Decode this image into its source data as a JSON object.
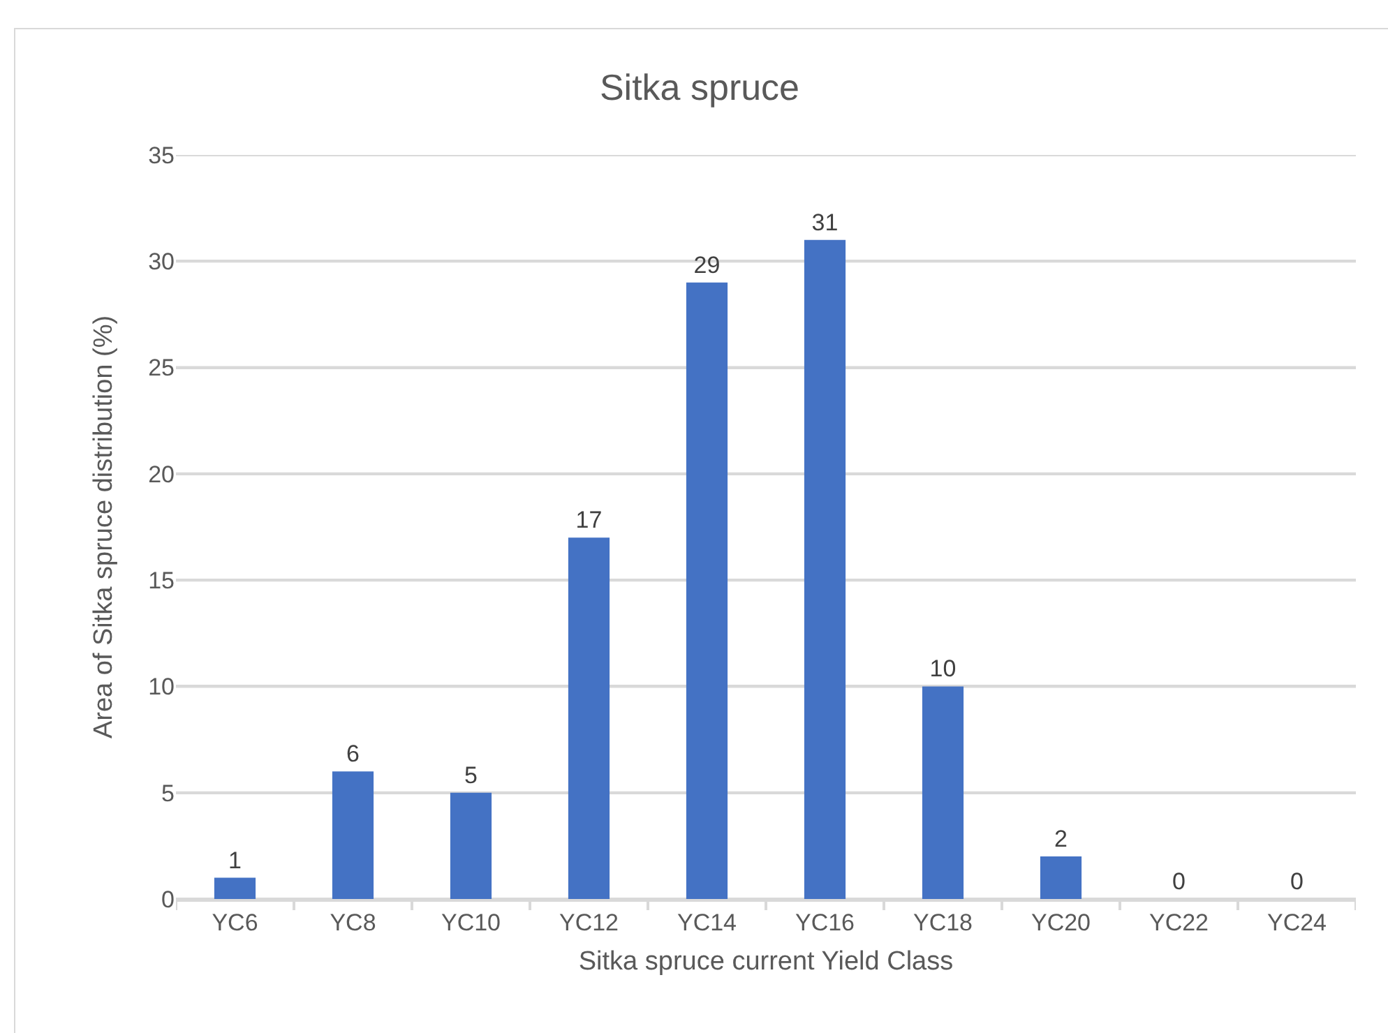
{
  "chart_data": {
    "type": "bar",
    "title": "Sitka spruce",
    "xlabel": "Sitka spruce current Yield Class",
    "ylabel": "Area of Sitka spruce distribution (%)",
    "categories": [
      "YC6",
      "YC8",
      "YC10",
      "YC12",
      "YC14",
      "YC16",
      "YC18",
      "YC20",
      "YC22",
      "YC24"
    ],
    "values": [
      1,
      6,
      5,
      17,
      29,
      31,
      10,
      2,
      0,
      0
    ],
    "data_labels": true,
    "color": "#4472c4",
    "ylim": [
      0,
      35
    ],
    "yticks": [
      0,
      5,
      10,
      15,
      20,
      25,
      30,
      35
    ],
    "grid": "y",
    "legend": false
  }
}
